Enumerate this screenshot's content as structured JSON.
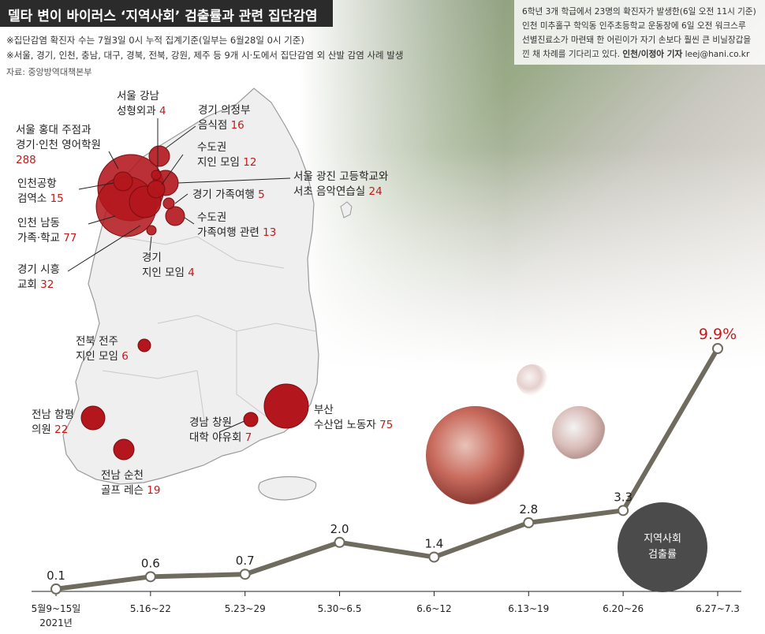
{
  "title": "델타 변이 바이러스 ‘지역사회’ 검출률과 관련 집단감염",
  "notes": [
    "※집단감염 확진자 수는 7월3일 0시 누적 집계기준(일부는 6월28일 0시 기준)",
    "※서울, 경기, 인천, 충남, 대구, 경북, 전북, 강원, 제주 등 9개 시·도에서 집단감염 외 산발 감염 사례 발생"
  ],
  "source": "자료: 중앙방역대책본부",
  "photo_caption": {
    "lines": [
      "6학년 3개 학급에서 23명의 확진자가 발생한(6일 오전 11시 기준)",
      "인천 미추홀구 학익동 인주초등학교 운동장에 6일 오전 워크스루",
      "선별진료소가 마련돼 한 어린이가 자기 손보다 훨씬 큰 비닐장갑을"
    ],
    "last_text": "낀 채 차례를 기다리고 있다. ",
    "credit": "인천/이정아 기자",
    "email": " leej@hani.co.kr"
  },
  "clusters": [
    {
      "line1": "서울 강남",
      "line2": "성형외과 ",
      "count": "4"
    },
    {
      "line1": "경기 의정부",
      "line2": "음식점 ",
      "count": "16"
    },
    {
      "line1": "서울 홍대 주점과",
      "line2": "경기·인천 영어학원",
      "count": "288"
    },
    {
      "line1": "수도권",
      "line2": "지인 모임 ",
      "count": "12"
    },
    {
      "line1": "서울 광진 고등학교와",
      "line2": "서초 음악연습실 ",
      "count": "24"
    },
    {
      "line1": "인천공항",
      "line2": "검역소 ",
      "count": "15"
    },
    {
      "line1": "경기 가족여행 ",
      "line2": "",
      "count": "5"
    },
    {
      "line1": "인천 남동",
      "line2": "가족·학교 ",
      "count": "77"
    },
    {
      "line1": "수도권",
      "line2": "가족여행 관련 ",
      "count": "13"
    },
    {
      "line1": "경기",
      "line2": "지인 모임 ",
      "count": "4"
    },
    {
      "line1": "경기 시흥",
      "line2": "교회 ",
      "count": "32"
    },
    {
      "line1": "전북 전주",
      "line2": "지인 모임 ",
      "count": "6"
    },
    {
      "line1": "전남 함평",
      "line2": "의원 ",
      "count": "22"
    },
    {
      "line1": "부산",
      "line2": "수산업 노동자 ",
      "count": "75"
    },
    {
      "line1": "경남 창원",
      "line2": "대학 야유회 ",
      "count": "7"
    },
    {
      "line1": "전남 순천",
      "line2": "골프 레슨 ",
      "count": "19"
    }
  ],
  "colors": {
    "cluster_fill": "#b3161c",
    "number_red": "#c41a1a",
    "line": "#6f6b5e",
    "legend_bg": "#4b4b4b"
  },
  "legend_label": [
    "지역사회",
    "검출률"
  ],
  "chart_data": {
    "type": "line",
    "categories": [
      "5월9~15일",
      "5.16~22",
      "5.23~29",
      "5.30~6.5",
      "6.6~12",
      "6.13~19",
      "6.20~26",
      "6.27~7.3"
    ],
    "x_sublabel": "2021년",
    "series": [
      {
        "name": "지역사회 검출률",
        "values": [
          0.1,
          0.6,
          0.7,
          2.0,
          1.4,
          2.8,
          3.3,
          9.9
        ]
      }
    ],
    "value_labels": [
      "0.1",
      "0.6",
      "0.7",
      "2.0",
      "1.4",
      "2.8",
      "3.3",
      "9.9%"
    ],
    "ylim": [
      0,
      10
    ],
    "grid": false,
    "legend": "right"
  }
}
